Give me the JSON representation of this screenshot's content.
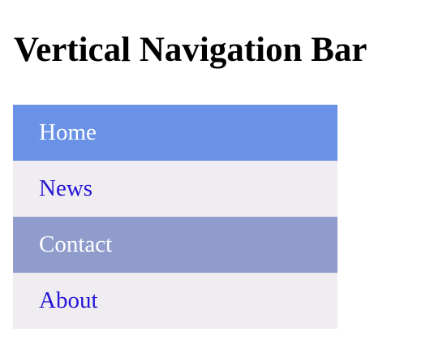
{
  "page": {
    "title": "Vertical Navigation Bar"
  },
  "nav": {
    "items": [
      {
        "label": "Home",
        "state": "active",
        "bg": "#6992e6",
        "color": "#ffffff"
      },
      {
        "label": "News",
        "state": "normal",
        "bg": "#efedf2",
        "color": "#2414d6"
      },
      {
        "label": "Contact",
        "state": "hover",
        "bg": "#8f9ccc",
        "color": "#ffffff"
      },
      {
        "label": "About",
        "state": "normal",
        "bg": "#efedf2",
        "color": "#2414d6"
      }
    ]
  }
}
